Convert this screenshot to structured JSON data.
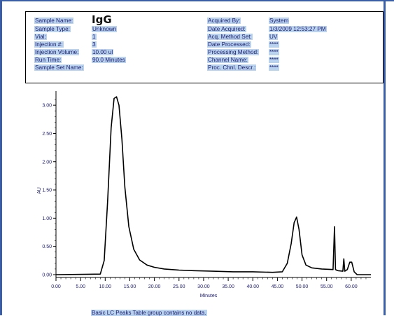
{
  "sample_info": {
    "left": [
      {
        "label": "Sample Name:",
        "value": "IgG"
      },
      {
        "label": "Sample Type:",
        "value": "Unknown"
      },
      {
        "label": "Vial:",
        "value": "1"
      },
      {
        "label": "Injection #:",
        "value": "3"
      },
      {
        "label": "Injection Volume:",
        "value": "10.00 ul"
      },
      {
        "label": "Run Time:",
        "value": "90.0 Minutes"
      },
      {
        "label": "Sample Set Name:",
        "value": ""
      }
    ],
    "right": [
      {
        "label": "Acquired By:",
        "value": "System"
      },
      {
        "label": "Date Acquired:",
        "value": "1/3/2009 12:53:27 PM"
      },
      {
        "label": "Acq. Method Set:",
        "value": "UV"
      },
      {
        "label": "Date Processed:",
        "value": "****"
      },
      {
        "label": "Processing Method:",
        "value": "****"
      },
      {
        "label": "Channel Name:",
        "value": "****"
      },
      {
        "label": "Proc. Chnl. Descr.:",
        "value": "****"
      }
    ]
  },
  "chart_data": {
    "type": "line",
    "xlabel": "Minutes",
    "ylabel": "AU",
    "xlim": [
      0,
      64
    ],
    "ylim": [
      -0.05,
      3.25
    ],
    "x_ticks": [
      "0.00",
      "5.00",
      "10.00",
      "15.00",
      "20.00",
      "25.00",
      "30.00",
      "35.00",
      "40.00",
      "45.00",
      "50.00",
      "55.00",
      "60.00"
    ],
    "y_ticks": [
      "0.00",
      "0.50",
      "1.00",
      "1.50",
      "2.00",
      "2.50",
      "3.00"
    ],
    "series": [
      {
        "x": [
          0,
          9,
          9.8,
          10.5,
          11.2,
          11.8,
          12.3,
          12.8,
          13.4,
          14.0,
          14.8,
          15.8,
          17.0,
          18.5,
          20,
          22,
          25,
          28,
          32,
          36,
          40,
          44,
          46,
          47,
          47.8,
          48.4,
          48.9,
          49.4,
          50.0,
          50.8,
          52,
          54,
          56.3,
          56.6,
          56.8,
          57.0,
          57.3,
          58.3,
          58.5,
          58.7,
          59.2,
          59.7,
          60.1,
          60.6,
          61.2,
          64
        ],
        "y": [
          0.0,
          0.01,
          0.25,
          1.3,
          2.6,
          3.12,
          3.15,
          3.0,
          2.4,
          1.55,
          0.85,
          0.45,
          0.26,
          0.17,
          0.13,
          0.1,
          0.08,
          0.07,
          0.06,
          0.05,
          0.05,
          0.04,
          0.05,
          0.2,
          0.55,
          0.92,
          1.02,
          0.8,
          0.35,
          0.17,
          0.12,
          0.1,
          0.09,
          0.85,
          0.09,
          0.08,
          0.07,
          0.06,
          0.28,
          0.06,
          0.09,
          0.22,
          0.22,
          0.05,
          0.0,
          0.0
        ]
      }
    ]
  },
  "footer_text": "Basic LC Peaks Table group contains no data."
}
